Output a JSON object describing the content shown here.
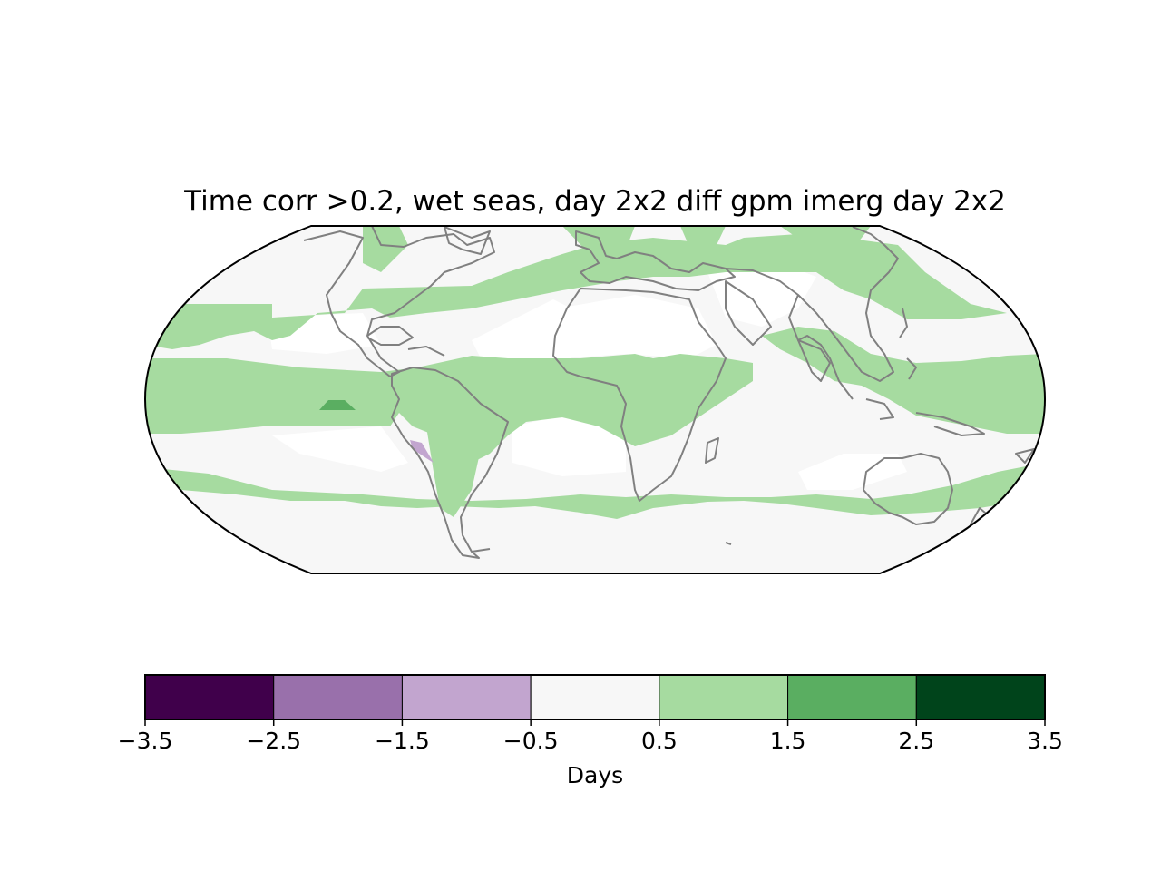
{
  "title": "Time corr >0.2, wet seas, day 2x2 diff gpm imerg day 2x2",
  "map": {
    "projection": "robinson",
    "central_longitude": 0,
    "coastline_color": "#808080",
    "ocean_background": "#f7f7f7",
    "masked_color": "#ffffff"
  },
  "colorbar": {
    "label": "Days",
    "ticks": [
      "−3.5",
      "−2.5",
      "−1.5",
      "−0.5",
      "0.5",
      "1.5",
      "2.5",
      "3.5"
    ],
    "bins": [
      {
        "from": -3.5,
        "to": -2.5,
        "color": "#40004b"
      },
      {
        "from": -2.5,
        "to": -1.5,
        "color": "#9970ab"
      },
      {
        "from": -1.5,
        "to": -0.5,
        "color": "#c2a5cf"
      },
      {
        "from": -0.5,
        "to": 0.5,
        "color": "#f7f7f7"
      },
      {
        "from": 0.5,
        "to": 1.5,
        "color": "#a6dba0"
      },
      {
        "from": 1.5,
        "to": 2.5,
        "color": "#5aae61"
      },
      {
        "from": 2.5,
        "to": 3.5,
        "color": "#00441b"
      }
    ]
  }
}
